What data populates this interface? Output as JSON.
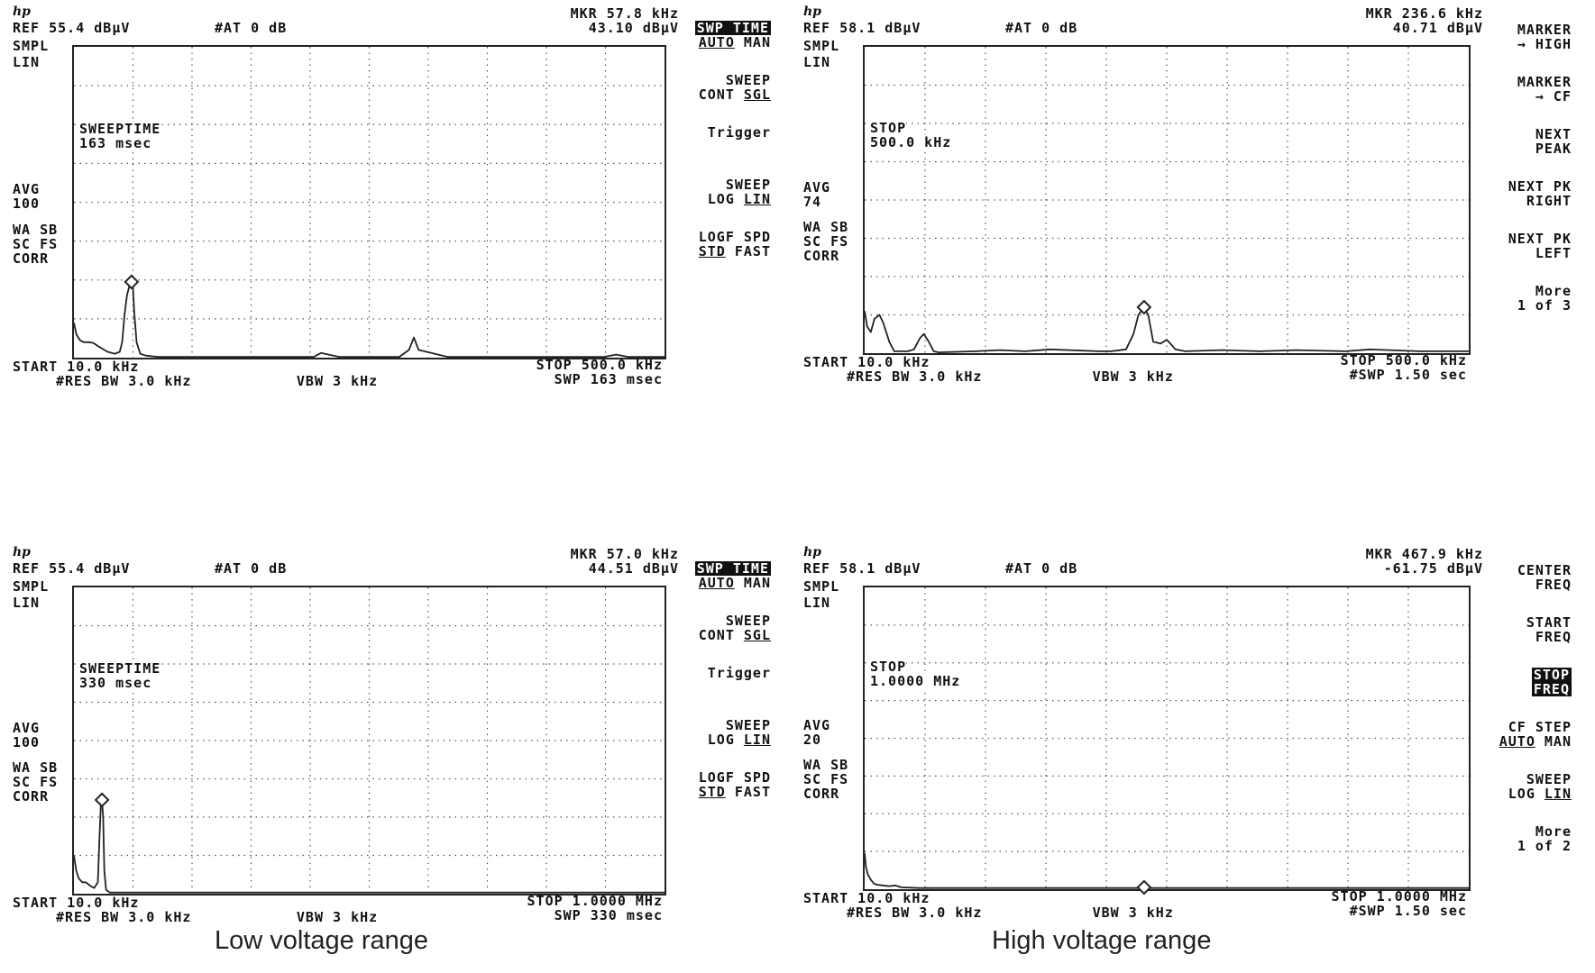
{
  "captions": {
    "left": "Low voltage range",
    "right": "High voltage range"
  },
  "colors": {
    "trace": "#222222",
    "grid": "#555555",
    "frame": "#222222"
  },
  "screens": [
    {
      "id": "tl",
      "ref": "REF 55.4 dBµV",
      "atten": "#AT 0 dB",
      "mkr_freq": "MKR 57.8 kHz",
      "mkr_level": "43.10 dBµV",
      "left_labels": [
        "SMPL",
        "LIN"
      ],
      "avg": [
        "AVG",
        "100"
      ],
      "corr": [
        "WA SB",
        "SC FS",
        "CORR"
      ],
      "annotation": [
        "SWEEPTIME",
        "163 msec"
      ],
      "start": "START 10.0 kHz",
      "stop": "STOP 500.0 kHz",
      "res_bw": "#RES BW 3.0 kHz",
      "vbw": "VBW 3 kHz",
      "swp": "SWP 163 msec",
      "softkeys": [
        {
          "lines": [
            "SWP TIME",
            "AUTO MAN"
          ],
          "hl": 0,
          "ul": [
            1,
            "AUTO"
          ]
        },
        {
          "lines": [
            "SWEEP",
            "CONT SGL"
          ],
          "ul": [
            1,
            "SGL"
          ]
        },
        {
          "lines": [
            "Trigger"
          ]
        },
        {
          "lines": [
            "SWEEP",
            "LOG LIN"
          ],
          "ul": [
            1,
            "LIN"
          ]
        },
        {
          "lines": [
            "LOGF SPD",
            "STD FAST"
          ],
          "ul": [
            1,
            "STD"
          ]
        }
      ],
      "chart_data": {
        "type": "line",
        "title": "",
        "xlabel": "",
        "ylabel": "",
        "x_range_khz": [
          10,
          500
        ],
        "y_range_div": [
          0,
          8
        ],
        "grid": true,
        "marker": {
          "x_khz": 57.8,
          "y_div": 1.95
        },
        "series": [
          {
            "x_khz": [
              10,
              12,
              15,
              18,
              22,
              26,
              30,
              34,
              38,
              44,
              48,
              50,
              52,
              54,
              56,
              57,
              57.8,
              59,
              60,
              62,
              65,
              70,
              80,
              100,
              150,
              200,
              209,
              215,
              230,
              260,
              280,
              288,
              292,
              296,
              320,
              400,
              450,
              460,
              470,
              500
            ],
            "y_div": [
              0.9,
              0.6,
              0.45,
              0.4,
              0.4,
              0.38,
              0.3,
              0.22,
              0.15,
              0.1,
              0.15,
              0.4,
              1.1,
              1.6,
              1.85,
              1.95,
              1.95,
              1.8,
              1.2,
              0.4,
              0.1,
              0.05,
              0.02,
              0.02,
              0.02,
              0.02,
              0.02,
              0.12,
              0.02,
              0.02,
              0.02,
              0.2,
              0.52,
              0.2,
              0.02,
              0.02,
              0.02,
              0.08,
              0.02,
              0.02
            ]
          }
        ]
      }
    },
    {
      "id": "tr",
      "ref": "REF 58.1 dBµV",
      "atten": "#AT 0 dB",
      "mkr_freq": "MKR 236.6 kHz",
      "mkr_level": "40.71 dBµV",
      "left_labels": [
        "SMPL",
        "LIN"
      ],
      "avg": [
        "AVG",
        "74"
      ],
      "corr": [
        "WA SB",
        "SC FS",
        "CORR"
      ],
      "annotation": [
        "STOP",
        "500.0 kHz"
      ],
      "start": "START 10.0 kHz",
      "stop": "STOP 500.0 kHz",
      "res_bw": "#RES BW 3.0 kHz",
      "vbw": "VBW 3 kHz",
      "swp": "#SWP 1.50 sec",
      "softkeys": [
        {
          "lines": [
            "MARKER",
            "→ HIGH"
          ]
        },
        {
          "lines": [
            "MARKER",
            "→ CF"
          ]
        },
        {
          "lines": [
            "NEXT",
            "PEAK"
          ]
        },
        {
          "lines": [
            "NEXT PK",
            "RIGHT"
          ]
        },
        {
          "lines": [
            "NEXT PK",
            "LEFT"
          ]
        },
        {
          "lines": [
            "More",
            "1 of 3"
          ]
        }
      ],
      "chart_data": {
        "type": "line",
        "title": "",
        "xlabel": "",
        "ylabel": "",
        "x_range_khz": [
          10,
          500
        ],
        "y_range_div": [
          0,
          8
        ],
        "grid": true,
        "marker": {
          "x_khz": 236.6,
          "y_div": 1.2
        },
        "series": [
          {
            "x_khz": [
              10,
              12,
              15,
              18,
              22,
              25,
              28,
              30,
              34,
              40,
              45,
              50,
              55,
              58,
              62,
              66,
              70,
              100,
              120,
              140,
              160,
              200,
              210,
              222,
              228,
              232,
              236.6,
              240,
              244,
              250,
              255,
              258,
              262,
              270,
              300,
              330,
              360,
              400,
              420,
              460,
              500
            ],
            "y_div": [
              1.1,
              0.7,
              0.55,
              0.9,
              1.0,
              0.8,
              0.5,
              0.3,
              0.05,
              0.05,
              0.05,
              0.1,
              0.4,
              0.5,
              0.3,
              0.05,
              0.02,
              0.05,
              0.08,
              0.05,
              0.1,
              0.05,
              0.05,
              0.1,
              0.5,
              1.0,
              1.2,
              1.0,
              0.3,
              0.25,
              0.35,
              0.25,
              0.1,
              0.05,
              0.08,
              0.05,
              0.08,
              0.05,
              0.1,
              0.05,
              0.05
            ]
          }
        ]
      }
    },
    {
      "id": "bl",
      "ref": "REF 55.4 dBµV",
      "atten": "#AT 0 dB",
      "mkr_freq": "MKR 57.0 kHz",
      "mkr_level": "44.51 dBµV",
      "left_labels": [
        "SMPL",
        "LIN"
      ],
      "avg": [
        "AVG",
        "100"
      ],
      "corr": [
        "WA SB",
        "SC FS",
        "CORR"
      ],
      "annotation": [
        "SWEEPTIME",
        "330 msec"
      ],
      "start": "START 10.0 kHz",
      "stop": "STOP 1.0000 MHz",
      "res_bw": "#RES BW 3.0 kHz",
      "vbw": "VBW 3 kHz",
      "swp": "SWP 330 msec",
      "softkeys": [
        {
          "lines": [
            "SWP TIME",
            "AUTO MAN"
          ],
          "hl": 0,
          "ul": [
            1,
            "AUTO"
          ]
        },
        {
          "lines": [
            "SWEEP",
            "CONT SGL"
          ],
          "ul": [
            1,
            "SGL"
          ]
        },
        {
          "lines": [
            "Trigger"
          ]
        },
        {
          "lines": [
            "SWEEP",
            "LOG LIN"
          ],
          "ul": [
            1,
            "LIN"
          ]
        },
        {
          "lines": [
            "LOGF SPD",
            "STD FAST"
          ],
          "ul": [
            1,
            "STD"
          ]
        }
      ],
      "chart_data": {
        "type": "line",
        "title": "",
        "xlabel": "",
        "ylabel": "",
        "x_range_khz": [
          10,
          1000
        ],
        "y_range_div": [
          0,
          8
        ],
        "grid": true,
        "marker": {
          "x_khz": 57.0,
          "y_div": 2.45
        },
        "series": [
          {
            "x_khz": [
              10,
              14,
              18,
              24,
              30,
              38,
              44,
              50,
              53,
              55,
              57,
              59,
              61,
              64,
              70,
              100,
              200,
              400,
              600,
              800,
              1000
            ],
            "y_div": [
              1.0,
              0.6,
              0.4,
              0.3,
              0.3,
              0.2,
              0.15,
              0.3,
              1.5,
              2.3,
              2.45,
              2.0,
              0.6,
              0.1,
              0.03,
              0.03,
              0.03,
              0.03,
              0.03,
              0.03,
              0.03
            ]
          }
        ]
      }
    },
    {
      "id": "br",
      "ref": "REF 58.1 dBµV",
      "atten": "#AT 0 dB",
      "mkr_freq": "MKR 467.9 kHz",
      "mkr_level": "-61.75 dBµV",
      "left_labels": [
        "SMPL",
        "LIN"
      ],
      "avg": [
        "AVG",
        "20"
      ],
      "corr": [
        "WA SB",
        "SC FS",
        "CORR"
      ],
      "annotation": [
        "STOP",
        "1.0000 MHz"
      ],
      "start": "START 10.0 kHz",
      "stop": "STOP 1.0000 MHz",
      "res_bw": "#RES BW 3.0 kHz",
      "vbw": "VBW 3 kHz",
      "swp": "#SWP 1.50 sec",
      "softkeys": [
        {
          "lines": [
            "CENTER",
            "FREQ"
          ]
        },
        {
          "lines": [
            "START",
            "FREQ"
          ]
        },
        {
          "lines": [
            "STOP",
            "FREQ"
          ],
          "hl": "all"
        },
        {
          "lines": [
            "CF STEP",
            "AUTO MAN"
          ],
          "ul": [
            1,
            "AUTO"
          ]
        },
        {
          "lines": [
            "SWEEP",
            "LOG LIN"
          ],
          "ul": [
            1,
            "LIN"
          ]
        },
        {
          "lines": [
            "More",
            "1 of 2"
          ]
        }
      ],
      "chart_data": {
        "type": "line",
        "title": "",
        "xlabel": "",
        "ylabel": "",
        "x_range_khz": [
          10,
          1000
        ],
        "y_range_div": [
          0,
          8
        ],
        "grid": true,
        "marker": {
          "x_khz": 467.9,
          "y_div": 0.05
        },
        "series": [
          {
            "x_khz": [
              10,
              12,
              15,
              20,
              25,
              30,
              40,
              50,
              60,
              70,
              100,
              200,
              400,
              600,
              800,
              1000
            ],
            "y_div": [
              0.95,
              0.6,
              0.4,
              0.25,
              0.15,
              0.12,
              0.1,
              0.08,
              0.1,
              0.05,
              0.03,
              0.03,
              0.03,
              0.03,
              0.03,
              0.03
            ]
          }
        ]
      }
    }
  ]
}
